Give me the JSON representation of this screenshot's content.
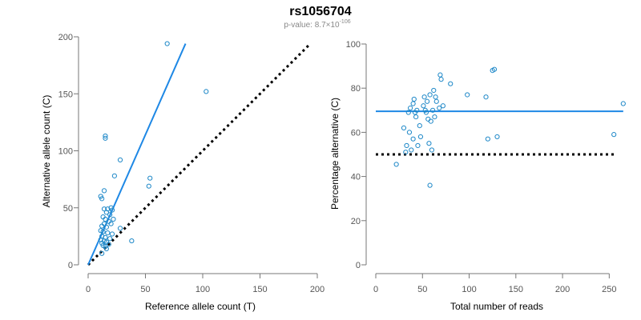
{
  "header": {
    "title": "rs1056704",
    "pvalue_prefix": "p-value: 8.7×10",
    "pvalue_exponent": "-106"
  },
  "colors": {
    "points": "#1e88c8",
    "fit": "#1e88e5",
    "reference": "#000000"
  },
  "chart_data": [
    {
      "type": "scatter",
      "title": "",
      "xlabel": "Reference allele count (T)",
      "ylabel": "Alternative allele count (C)",
      "xlim": [
        0,
        200
      ],
      "ylim": [
        0,
        200
      ],
      "xticks": [
        "0",
        "50",
        "100",
        "150",
        "200"
      ],
      "yticks": [
        "0",
        "50",
        "100",
        "150",
        "200"
      ],
      "fit_line": {
        "x": [
          0,
          85
        ],
        "y": [
          0,
          194
        ]
      },
      "reference_line": {
        "x": [
          0,
          193
        ],
        "y": [
          0,
          193
        ],
        "style": "dotted"
      },
      "points": [
        [
          69,
          194
        ],
        [
          103,
          152
        ],
        [
          15,
          113
        ],
        [
          15,
          111
        ],
        [
          28,
          92
        ],
        [
          23,
          78
        ],
        [
          54,
          76
        ],
        [
          53,
          69
        ],
        [
          14,
          65
        ],
        [
          11,
          60
        ],
        [
          12,
          58
        ],
        [
          20,
          50
        ],
        [
          17,
          49
        ],
        [
          21,
          48
        ],
        [
          14,
          49
        ],
        [
          16,
          46
        ],
        [
          19,
          44
        ],
        [
          13,
          42
        ],
        [
          15,
          40
        ],
        [
          22,
          40
        ],
        [
          18,
          38
        ],
        [
          14,
          36
        ],
        [
          20,
          36
        ],
        [
          12,
          34
        ],
        [
          16,
          33
        ],
        [
          28,
          32
        ],
        [
          11,
          30
        ],
        [
          13,
          29
        ],
        [
          17,
          28
        ],
        [
          21,
          27
        ],
        [
          12,
          25
        ],
        [
          15,
          24
        ],
        [
          19,
          23
        ],
        [
          11,
          22
        ],
        [
          14,
          21
        ],
        [
          16,
          20
        ],
        [
          12,
          19
        ],
        [
          38,
          21
        ],
        [
          18,
          18
        ],
        [
          13,
          17
        ],
        [
          15,
          16
        ],
        [
          16,
          14
        ],
        [
          12,
          10
        ]
      ]
    },
    {
      "type": "scatter",
      "title": "",
      "xlabel": "Total number of reads",
      "ylabel": "Percentage alternative (C)",
      "xlim": [
        0,
        260
      ],
      "ylim": [
        0,
        100
      ],
      "xticks": [
        "0",
        "50",
        "100",
        "150",
        "200",
        "250"
      ],
      "yticks": [
        "0",
        "20",
        "40",
        "60",
        "80",
        "100"
      ],
      "fit_line": {
        "x": [
          0,
          265
        ],
        "y": [
          69.5,
          69.5
        ]
      },
      "reference_line": {
        "x": [
          0,
          255
        ],
        "y": [
          50,
          50
        ],
        "style": "dotted"
      },
      "points": [
        [
          22,
          45.5
        ],
        [
          30,
          62
        ],
        [
          32,
          51
        ],
        [
          33,
          54
        ],
        [
          35,
          69
        ],
        [
          36,
          60
        ],
        [
          37,
          71
        ],
        [
          38,
          52
        ],
        [
          40,
          57
        ],
        [
          40,
          73
        ],
        [
          41,
          75
        ],
        [
          42,
          69
        ],
        [
          43,
          67
        ],
        [
          44,
          70
        ],
        [
          45,
          54
        ],
        [
          47,
          63
        ],
        [
          48,
          58
        ],
        [
          51,
          72
        ],
        [
          52,
          76
        ],
        [
          53,
          70
        ],
        [
          54,
          69
        ],
        [
          55,
          74
        ],
        [
          56,
          66
        ],
        [
          57,
          55
        ],
        [
          58,
          36
        ],
        [
          58,
          77
        ],
        [
          59,
          65
        ],
        [
          60,
          52
        ],
        [
          61,
          70
        ],
        [
          62,
          79
        ],
        [
          63,
          67
        ],
        [
          64,
          76
        ],
        [
          65,
          74
        ],
        [
          68,
          71
        ],
        [
          69,
          86
        ],
        [
          70,
          84
        ],
        [
          72,
          72
        ],
        [
          80,
          82
        ],
        [
          98,
          77
        ],
        [
          118,
          76
        ],
        [
          120,
          57
        ],
        [
          125,
          88
        ],
        [
          127,
          88.5
        ],
        [
          130,
          58
        ],
        [
          255,
          59
        ],
        [
          265,
          73
        ]
      ]
    }
  ]
}
